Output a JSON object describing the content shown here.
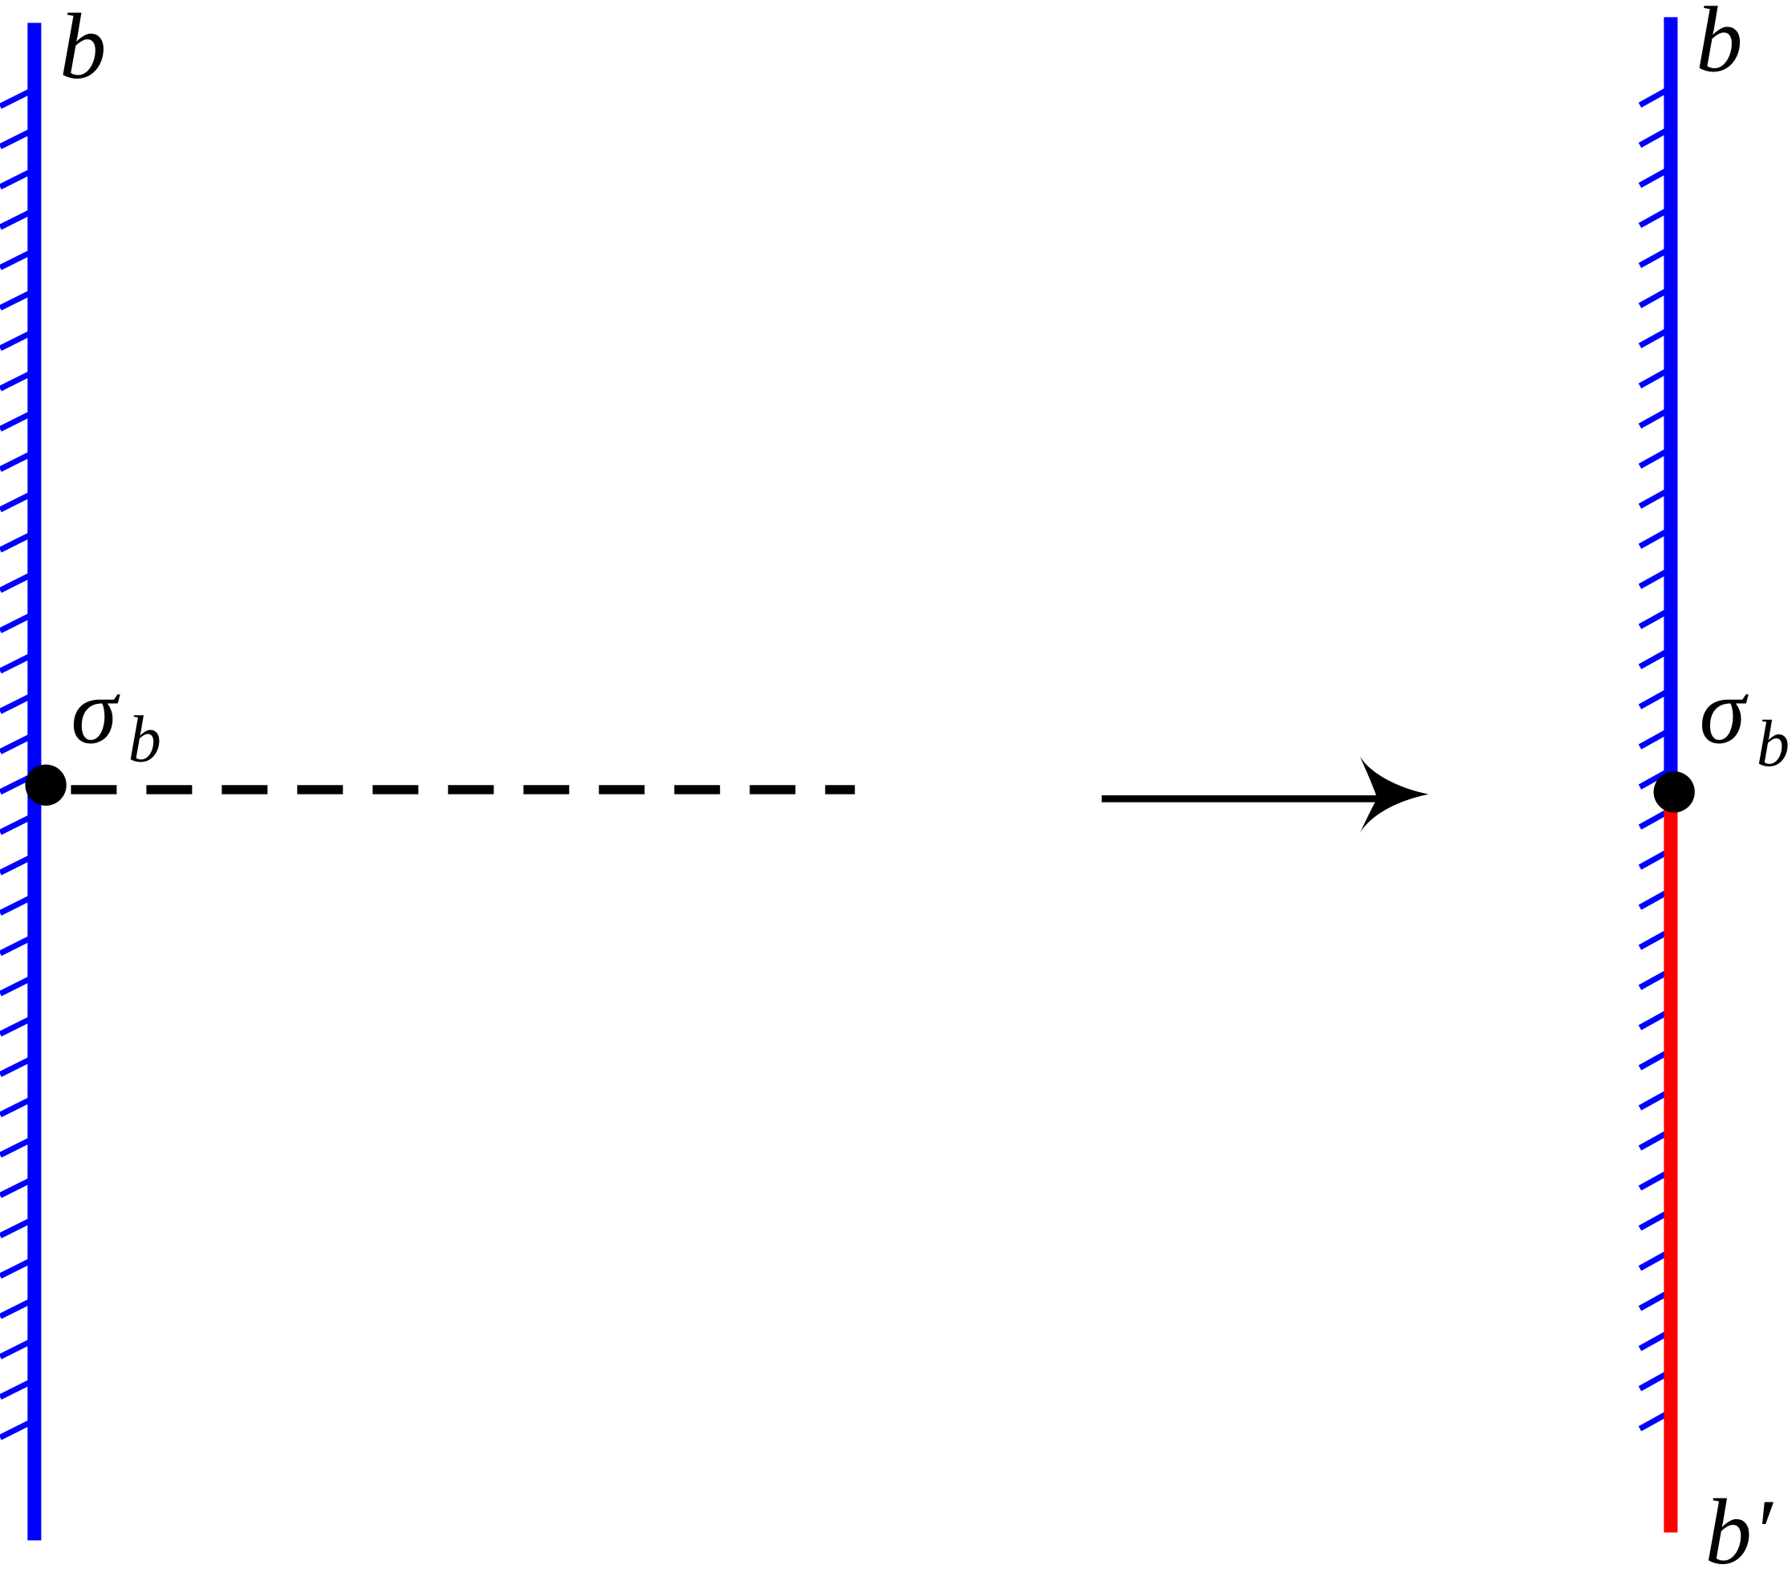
{
  "left": {
    "label": "b",
    "defect": {
      "symbol": "σ",
      "subscript": "b"
    }
  },
  "right": {
    "top_label": "b",
    "defect": {
      "symbol": "σ",
      "subscript": "b"
    },
    "bottom_label": "b′"
  }
}
